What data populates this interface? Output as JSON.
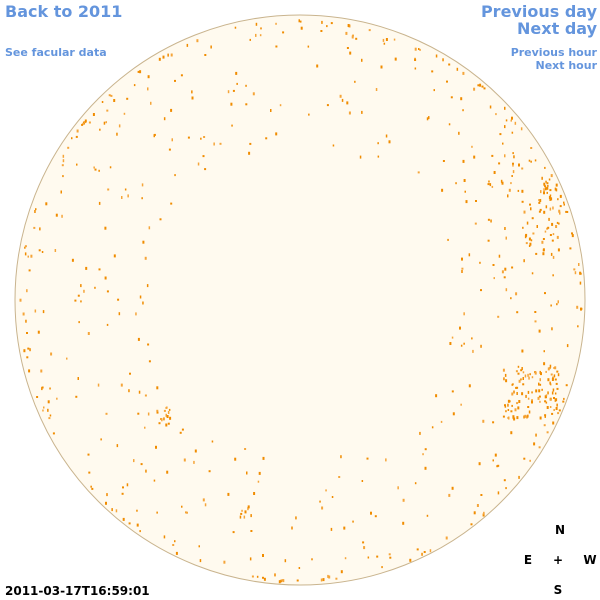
{
  "nav": {
    "back": "Back to 2011",
    "facular": "See facular data",
    "previous_day": "Previous day",
    "next_day": "Next day",
    "previous_hour": "Previous hour",
    "next_hour": "Next hour"
  },
  "timestamp": "2011-03-17T16:59:01",
  "compass": {
    "north": "N",
    "east": "E",
    "center": "+",
    "west": "W",
    "south": "S"
  }
}
